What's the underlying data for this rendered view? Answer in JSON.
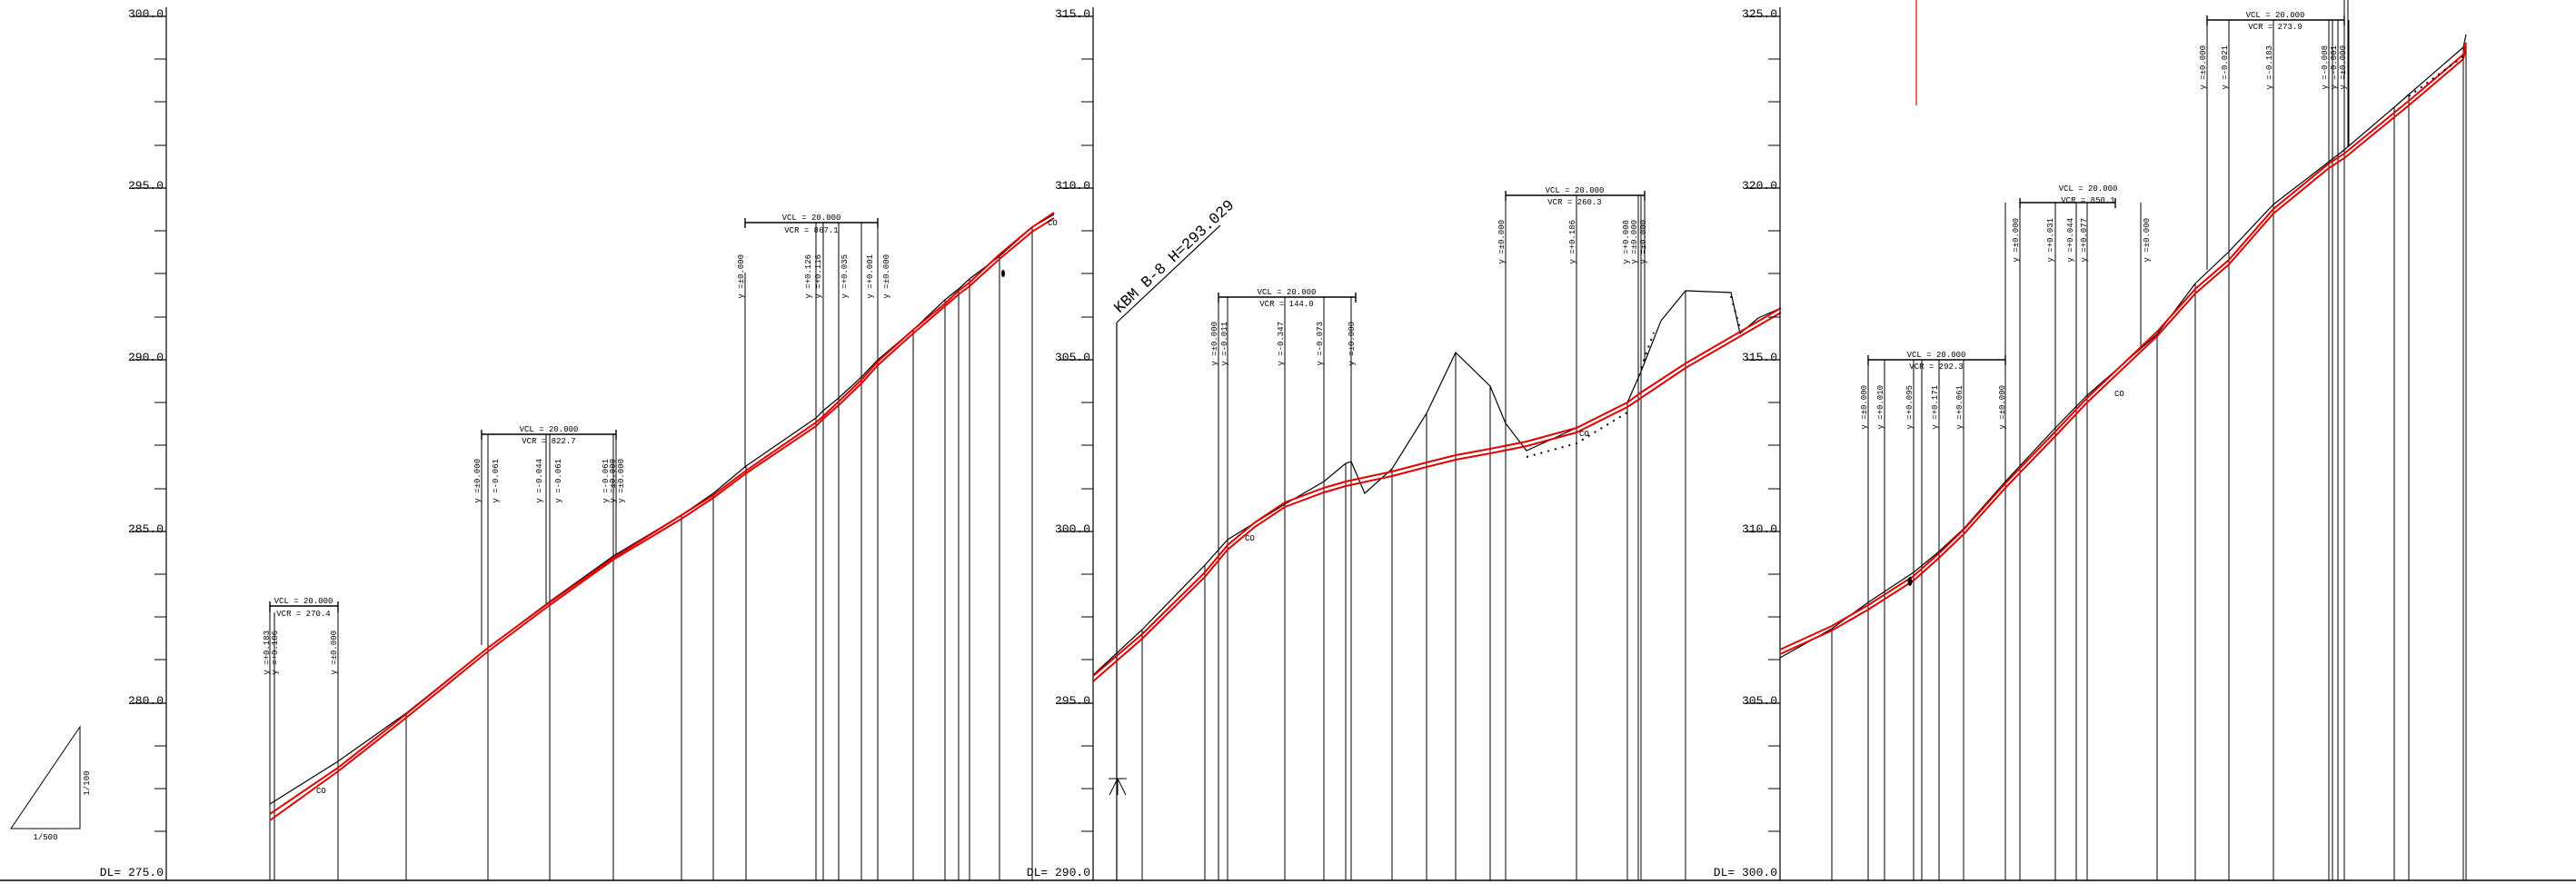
{
  "drawing": {
    "scale_triangle": {
      "vertical": "1/100",
      "horizontal": "1/500"
    },
    "benchmark": {
      "label": "KBM B-8 H=293.029"
    },
    "panels": [
      {
        "datum_label": "DL= 275.0",
        "ticks": [
          {
            "value": 300.0,
            "label": "300.0"
          },
          {
            "value": 295.0,
            "label": "295.0"
          },
          {
            "value": 290.0,
            "label": "290.0"
          },
          {
            "value": 285.0,
            "label": "285.0"
          },
          {
            "value": 280.0,
            "label": "280.0"
          }
        ],
        "vertical_curves": [
          {
            "vcl": "VCL = 20.000",
            "vcr": "VCR = 270.4"
          },
          {
            "vcl": "VCL = 20.000",
            "vcr": "VCR = 822.7"
          },
          {
            "vcl": "VCL = 20.000",
            "vcr": "VCR = 867.1"
          }
        ],
        "y_values": [
          "y =+0.183",
          "y =+0.186",
          "y =±0.000",
          "y =±0.000",
          "y =-0.061",
          "y =-0.044",
          "y =-0.061",
          "y =-0.061",
          "y =±0.000",
          "y =±0.000",
          "y =±0.000",
          "y =+0.126",
          "y =+0.116",
          "y =+0.035",
          "y =+0.001",
          "y =±0.000"
        ],
        "markers": [
          "CO",
          "CO"
        ]
      },
      {
        "datum_label": "DL= 290.0",
        "ticks": [
          {
            "value": 315.0,
            "label": "315.0"
          },
          {
            "value": 310.0,
            "label": "310.0"
          },
          {
            "value": 305.0,
            "label": "305.0"
          },
          {
            "value": 300.0,
            "label": "300.0"
          },
          {
            "value": 295.0,
            "label": "295.0"
          }
        ],
        "vertical_curves": [
          {
            "vcl": "VCL = 20.000",
            "vcr": "VCR = 144.0"
          },
          {
            "vcl": "VCL = 20.000",
            "vcr": "VCR = 260.3"
          }
        ],
        "y_values": [
          "y =±0.000",
          "y =-0.011",
          "y =-0.347",
          "y =-0.073",
          "y =±0.000",
          "y =±0.000",
          "y =+0.186",
          "y =+0.008",
          "y =±0.000",
          "y =±0.000"
        ],
        "markers": [
          "CO",
          "CO"
        ]
      },
      {
        "datum_label": "DL= 300.0",
        "ticks": [
          {
            "value": 325.0,
            "label": "325.0"
          },
          {
            "value": 320.0,
            "label": "320.0"
          },
          {
            "value": 315.0,
            "label": "315.0"
          },
          {
            "value": 310.0,
            "label": "310.0"
          },
          {
            "value": 305.0,
            "label": "305.0"
          }
        ],
        "vertical_curves": [
          {
            "vcl": "VCL = 20.000",
            "vcr": "VCR = 292.3"
          },
          {
            "vcl": "VCL = 20.000",
            "vcr": "VCR = 850.1"
          },
          {
            "vcl": "VCL = 20.000",
            "vcr": "VCR = 273.9"
          }
        ],
        "y_values": [
          "y =±0.000",
          "y =+0.010",
          "y =+0.095",
          "y =+0.171",
          "y =+0.061",
          "y =±0.000",
          "y =±0.000",
          "y =+0.031",
          "y =+0.044",
          "y =+0.077",
          "y =±0.000",
          "y =±0.000",
          "y =-0.021",
          "y =-0.183",
          "y =-0.008",
          "y =-0.001",
          "y =±0.000"
        ],
        "markers": [
          "CO"
        ]
      }
    ]
  }
}
